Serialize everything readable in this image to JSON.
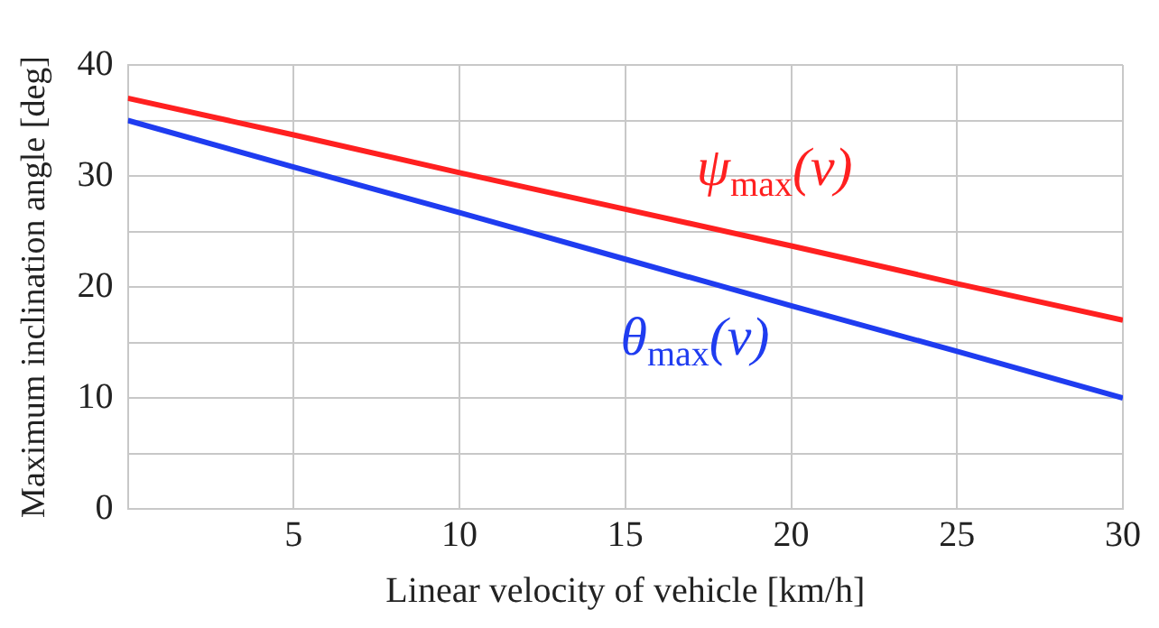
{
  "chart_data": {
    "type": "line",
    "xlabel": "Linear velocity of vehicle [km/h]",
    "ylabel": "Maximum inclination angle [deg]",
    "x": [
      0,
      5,
      10,
      15,
      20,
      25,
      30
    ],
    "series": [
      {
        "name": "ψ$_{max}$(v)",
        "color": "#ff2020",
        "values": [
          37,
          33.7,
          30.3,
          27,
          23.7,
          20.3,
          17
        ]
      },
      {
        "name": "θ$_{max}$(v)",
        "color": "#1f3cf0",
        "values": [
          35,
          30.8,
          26.7,
          22.5,
          18.3,
          14.2,
          10
        ]
      }
    ],
    "xlim": [
      0,
      30
    ],
    "xticks": [
      {
        "value": 0,
        "label": null
      },
      5,
      10,
      15,
      20,
      25,
      30
    ],
    "ylim": [
      0,
      40
    ],
    "yticks": [
      0,
      {
        "value": 5,
        "label": null
      },
      10,
      {
        "value": 15,
        "label": null
      },
      20,
      {
        "value": 25,
        "label": null
      },
      30,
      {
        "value": 35,
        "label": null
      },
      40
    ],
    "grid": true,
    "legend": false,
    "marker": "none",
    "line_style": "solid"
  }
}
